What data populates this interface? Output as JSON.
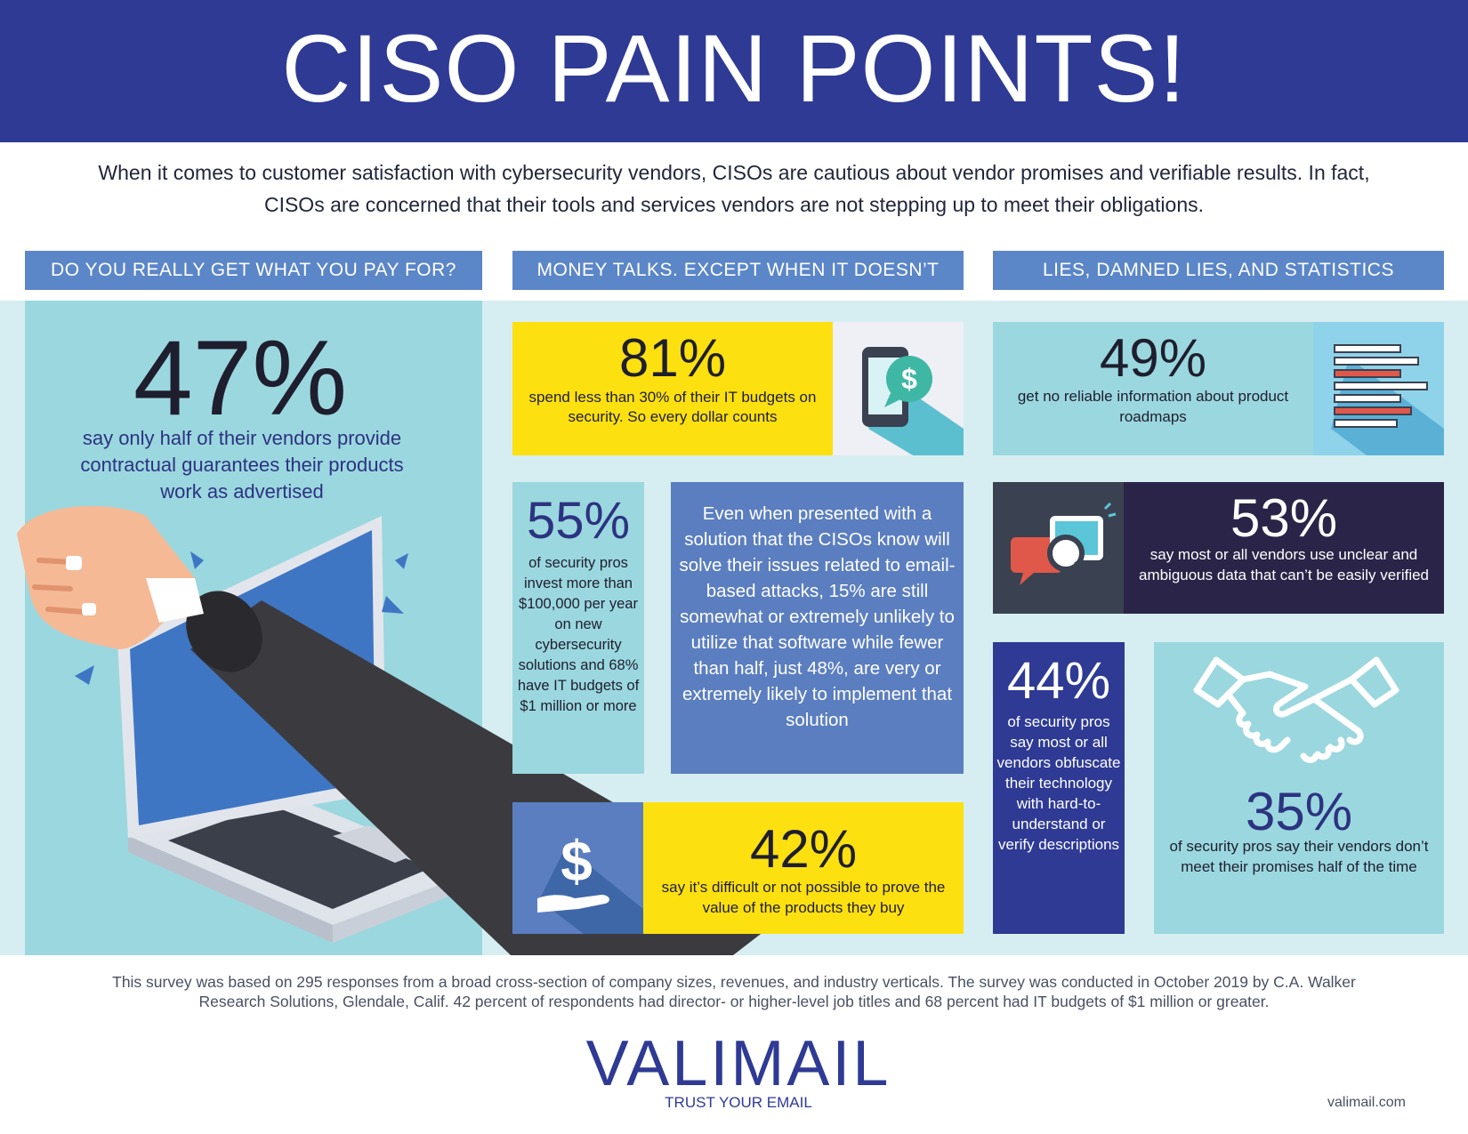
{
  "header": {
    "title": "CISO PAIN POINTS!"
  },
  "intro": "When it comes to customer satisfaction with cybersecurity vendors, CISOs are cautious about vendor promises and verifiable results. In fact, CISOs are concerned that their tools and services vendors are not stepping up to meet their obligations.",
  "sections": [
    "DO YOU REALLY GET WHAT YOU PAY FOR?",
    "MONEY TALKS. EXCEPT WHEN IT DOESN’T",
    "LIES, DAMNED LIES, AND STATISTICS"
  ],
  "stats": {
    "s47": {
      "value": "47%",
      "text": "say only half of their vendors provide contractual guarantees their products work as advertised"
    },
    "s81": {
      "value": "81%",
      "text": "spend less than 30% of their IT budgets on security. So every dollar counts"
    },
    "s55": {
      "value": "55%",
      "text": "of security pros invest more than $100,000 per year on new cybersecurity solutions and 68% have IT budgets of $1 million or more"
    },
    "quote": "Even when presented with a solution that the CISOs know will solve their issues related to email-based attacks, 15% are still somewhat or extremely unlikely to utilize that software while fewer than half, just 48%, are very or extremely likely to implement that solution",
    "s42": {
      "value": "42%",
      "text": "say it’s difficult or not possible to prove the value of the products they buy"
    },
    "s49": {
      "value": "49%",
      "text": "get no reliable information about product roadmaps"
    },
    "s53": {
      "value": "53%",
      "text": "say most or all vendors use unclear and ambiguous data that can’t be easily verified"
    },
    "s44": {
      "value": "44%",
      "text": "of security pros say most or all vendors obfuscate their technology with hard-to-understand or verify descriptions"
    },
    "s35": {
      "value": "35%",
      "text": "of security pros say their vendors don’t meet their promises half of the time"
    }
  },
  "footnote": "This survey was based on 295 responses from a broad cross-section of company sizes, revenues, and industry verticals. The survey was conducted in October 2019 by C.A. Walker Research Solutions, Glendale, Calif. 42 percent of respondents had director- or higher-level job titles and 68 percent had IT budgets of $1 million or greater.",
  "brand": {
    "logo": "VALIMAIL",
    "tagline": "TRUST YOUR EMAIL",
    "url": "valimail.com"
  },
  "colors": {
    "navy": "#2e3a94",
    "section_blue": "#5b86c8",
    "light_teal": "#9bd7df",
    "band": "#d6eef1",
    "yellow": "#fde010",
    "dark_purple": "#2a2448"
  },
  "icons": [
    "phone-dollar-icon",
    "roadmap-list-icon",
    "chat-magnifier-icon",
    "handshake-icon",
    "hand-dollar-icon",
    "laptop-fist-illustration"
  ]
}
